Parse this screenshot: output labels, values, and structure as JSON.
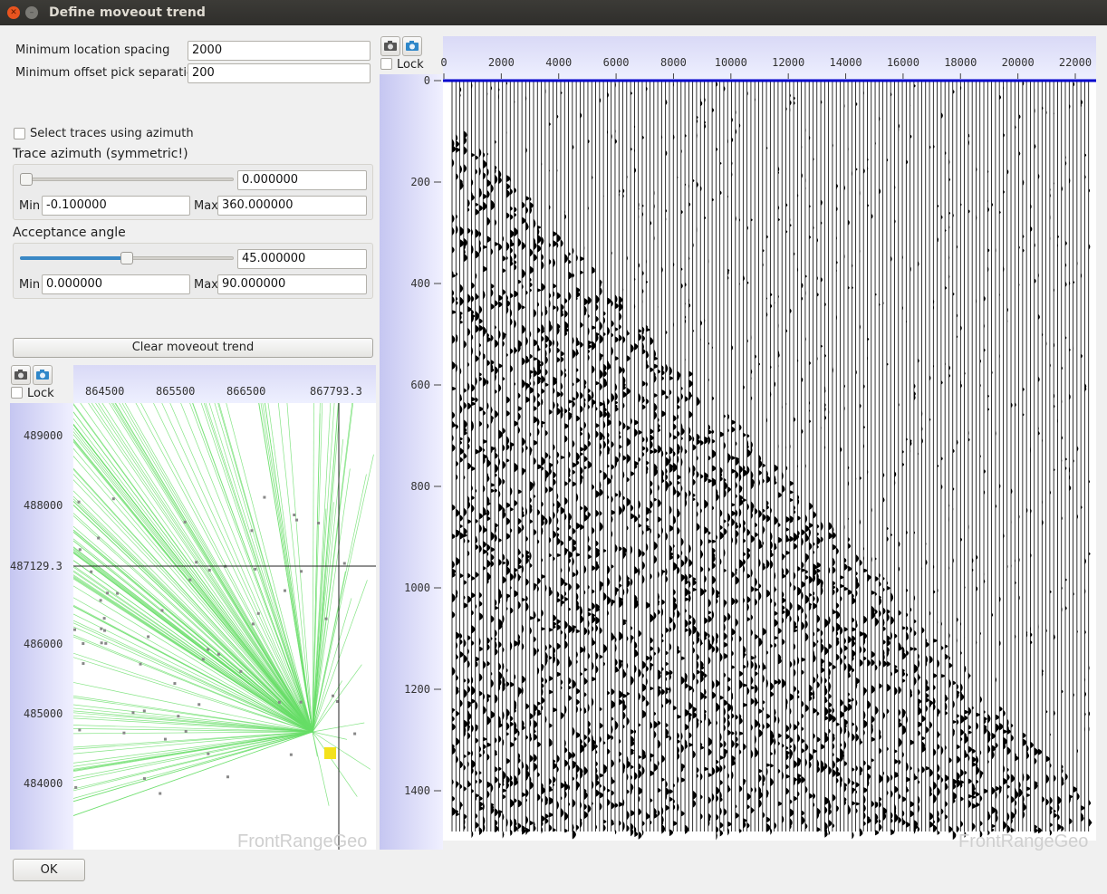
{
  "window": {
    "title": "Define moveout trend"
  },
  "params": {
    "min_location_spacing_label": "Minimum location spacing",
    "min_location_spacing_value": "2000",
    "min_offset_sep_label": "Minimum offset pick separation",
    "min_offset_sep_value": "200"
  },
  "azimuth": {
    "select_label": "Select traces using azimuth",
    "select_checked": false,
    "trace_azimuth_label": "Trace azimuth (symmetric!)",
    "value": "0.000000",
    "min_label": "Min",
    "min_value": "-0.100000",
    "max_label": "Max",
    "max_value": "360.000000",
    "level_fraction": 0.0
  },
  "acceptance": {
    "label": "Acceptance angle",
    "value": "45.000000",
    "min_label": "Min",
    "min_value": "0.000000",
    "max_label": "Max",
    "max_value": "90.000000",
    "level_fraction": 0.5
  },
  "clear_button": "Clear moveout trend",
  "map": {
    "lock_label": "Lock",
    "x_ticks": [
      "864500",
      "865500",
      "866500",
      "867793.3"
    ],
    "y_ticks": [
      "489000",
      "488000",
      "487129.3",
      "486000",
      "485000",
      "484000"
    ],
    "watermark": "FrontRangeGeo",
    "cursor_x": "867793.3",
    "cursor_y": "487129.3"
  },
  "seismic": {
    "lock_label": "Lock",
    "x_ticks": [
      "0",
      "2000",
      "4000",
      "6000",
      "8000",
      "10000",
      "12000",
      "14000",
      "16000",
      "18000",
      "20000",
      "22000"
    ],
    "y_ticks": [
      "0",
      "200",
      "400",
      "600",
      "800",
      "1000",
      "1200",
      "1400"
    ],
    "watermark": "FrontRangeGeo"
  },
  "ok_button": "OK",
  "colors": {
    "trend_line": "#0000cc",
    "ray": "#66dd66",
    "highlight": "#f4e11c",
    "slider_fill": "#3a88c5"
  }
}
